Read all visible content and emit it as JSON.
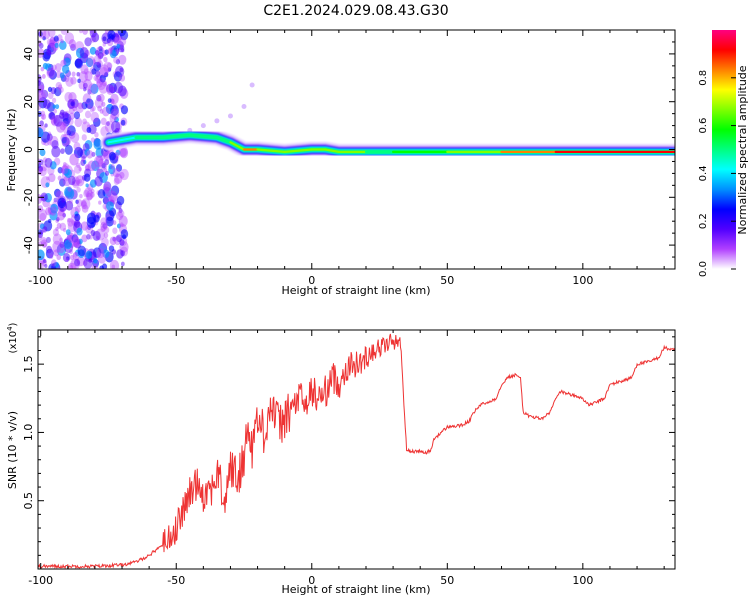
{
  "title": "C2E1.2024.029.08.43.G30",
  "chart_data": [
    {
      "type": "heatmap",
      "xlabel": "Height of straight line (km)",
      "ylabel": "Frequency (Hz)",
      "xlim": [
        -101,
        134
      ],
      "ylim": [
        -50,
        50
      ],
      "x_ticks": [
        -100,
        -50,
        0,
        50,
        100
      ],
      "y_ticks": [
        -40,
        -20,
        0,
        20,
        40
      ],
      "colorbar": {
        "label": "Normalized spectral amplitude",
        "range": [
          0,
          1
        ],
        "ticks": [
          "0.0",
          "0.2",
          "0.4",
          "0.6",
          "0.8"
        ],
        "colors": [
          "#ffffff",
          "#b040ff",
          "#5000ff",
          "#0000ff",
          "#0090ff",
          "#00ffff",
          "#00ff80",
          "#00ff00",
          "#80ff00",
          "#ffff00",
          "#ff8000",
          "#ff0000",
          "#ff0080"
        ]
      },
      "ridge": {
        "x": [
          -75,
          -65,
          -55,
          -45,
          -35,
          -30,
          -25,
          -20,
          -10,
          0,
          5,
          10,
          20,
          30,
          50,
          70,
          90,
          110,
          134
        ],
        "freq": [
          3,
          5,
          5,
          6,
          5,
          3,
          0,
          0,
          -1,
          0,
          0,
          -1,
          -1,
          -1,
          -1,
          -1,
          -1,
          -1,
          -1
        ],
        "amplitude": [
          0.3,
          0.45,
          0.5,
          0.45,
          0.55,
          0.5,
          0.8,
          0.8,
          0.5,
          0.85,
          0.55,
          0.85,
          0.5,
          0.55,
          0.6,
          0.75,
          0.9,
          0.95,
          0.95
        ]
      }
    },
    {
      "type": "line",
      "xlabel": "Height of straight line (km)",
      "ylabel": "SNR (10 * v/v)",
      "y_multiplier": "(x10",
      "y_multiplier_exp": "4",
      "xlim": [
        -101,
        134
      ],
      "ylim": [
        0,
        1.75
      ],
      "x_ticks": [
        -100,
        -50,
        0,
        50,
        100
      ],
      "y_ticks": [
        0.5,
        1.0,
        1.5
      ],
      "y_tick_labels": [
        "0.5",
        "1.0",
        "1.5"
      ],
      "grid": false,
      "series": [
        {
          "color": "#ee3333",
          "x": [
            -101,
            -90,
            -80,
            -70,
            -65,
            -60,
            -55,
            -52,
            -50,
            -47,
            -45,
            -42,
            -40,
            -37,
            -35,
            -32,
            -30,
            -27,
            -25,
            -23,
            -22,
            -20,
            -18,
            -15,
            -12,
            -10,
            -8,
            -5,
            -2,
            0,
            3,
            5,
            8,
            10,
            12,
            15,
            18,
            20,
            22,
            25,
            28,
            30,
            32,
            33,
            34,
            35,
            38,
            40,
            42,
            44,
            45,
            50,
            55,
            58,
            60,
            62,
            65,
            68,
            70,
            72,
            75,
            77,
            78,
            80,
            85,
            88,
            90,
            92,
            95,
            100,
            102,
            105,
            108,
            110,
            115,
            118,
            120,
            125,
            128,
            130,
            134
          ],
          "y": [
            0.02,
            0.02,
            0.02,
            0.03,
            0.05,
            0.1,
            0.18,
            0.25,
            0.3,
            0.45,
            0.55,
            0.65,
            0.55,
            0.6,
            0.7,
            0.5,
            0.75,
            0.65,
            0.85,
            1.05,
            0.9,
            1.1,
            1.0,
            1.2,
            1.05,
            1.1,
            1.15,
            1.25,
            1.2,
            1.3,
            1.25,
            1.3,
            1.4,
            1.35,
            1.45,
            1.5,
            1.5,
            1.55,
            1.6,
            1.62,
            1.65,
            1.67,
            1.68,
            1.6,
            1.2,
            0.87,
            0.86,
            0.86,
            0.85,
            0.87,
            0.95,
            1.04,
            1.05,
            1.08,
            1.15,
            1.2,
            1.22,
            1.25,
            1.35,
            1.4,
            1.42,
            1.4,
            1.15,
            1.12,
            1.1,
            1.15,
            1.25,
            1.3,
            1.28,
            1.25,
            1.2,
            1.22,
            1.25,
            1.35,
            1.38,
            1.4,
            1.5,
            1.52,
            1.55,
            1.62,
            1.6
          ]
        }
      ]
    }
  ]
}
